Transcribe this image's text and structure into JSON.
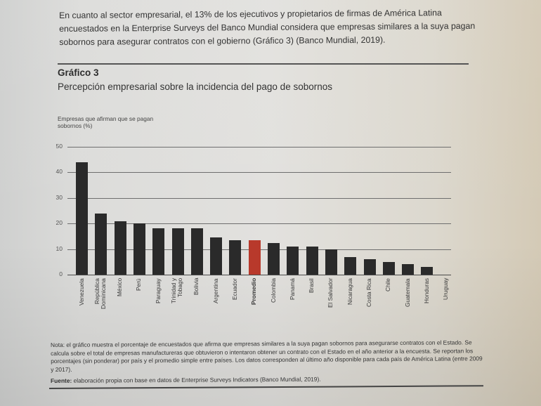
{
  "intro_text": "En cuanto al sector empresarial, el 13% de los ejecutivos y propietarios de firmas de América Latina encuestados en la Enterprise Surveys del Banco Mundial considera que empresas similares a la suya pagan sobornos para asegurar contratos con el gobierno (Gráfico 3) (Banco Mundial, 2019).",
  "chart_heading": "Gráfico 3",
  "chart_subtitle": "Percepción empresarial sobre la incidencia del pago de sobornos",
  "y_axis_title": "Empresas que afirman que se pagan sobornos (%)",
  "notes": "Nota: el gráfico muestra el porcentaje de encuestados que afirma que empresas similares a la suya pagan sobornos para asegurarse contratos con el Estado. Se calcula sobre el total de empresas manufactureras que obtuvieron o intentaron obtener un contrato con el Estado en el año anterior a la encuesta. Se reportan los porcentajes (sin ponderar) por país y el promedio simple entre países. Los datos corresponden al último año disponible para cada país de América Latina (entre 2009 y 2017).",
  "source_label": "Fuente:",
  "source_text": " elaboración propia con base en datos de Enterprise Surveys Indicators (Banco Mundial, 2019).",
  "colors": {
    "bar": "#2a2a2a",
    "highlight": "#b8392b",
    "gridline": "#6e6e6e"
  },
  "chart_data": {
    "type": "bar",
    "title": "Gráfico 3 — Percepción empresarial sobre la incidencia del pago de sobornos",
    "xlabel": "",
    "ylabel": "Empresas que afirman que se pagan sobornos (%)",
    "ylim": [
      0,
      50
    ],
    "yticks": [
      0,
      10,
      20,
      30,
      40,
      50
    ],
    "grid": true,
    "legend": null,
    "highlighted_category": "Promedio",
    "categories": [
      "Venezuela",
      "República Dominicana",
      "México",
      "Perú",
      "Paraguay",
      "Trinidad y Tobago",
      "Bolivia",
      "Argentina",
      "Ecuador",
      "Promedio",
      "Colombia",
      "Panamá",
      "Brasil",
      "El Salvador",
      "Nicaragua",
      "Costa Rica",
      "Chile",
      "Guatemala",
      "Honduras",
      "Uruguay"
    ],
    "display_labels": [
      "Venezuela",
      "República\nDominicana",
      "México",
      "Perú",
      "Paraguay",
      "Trinidad y\nTobago",
      "Bolivia",
      "Argentina",
      "Ecuador",
      "Promedio",
      "Colombia",
      "Panamá",
      "Brasil",
      "El Salvador",
      "Nicaragua",
      "Costa Rica",
      "Chile",
      "Guatemala",
      "Honduras",
      "Uruguay"
    ],
    "values": [
      44,
      24,
      21,
      20,
      18,
      18,
      18,
      14.5,
      13.5,
      13.5,
      12.5,
      11,
      11,
      10,
      7,
      6,
      5,
      4,
      3,
      0
    ]
  }
}
